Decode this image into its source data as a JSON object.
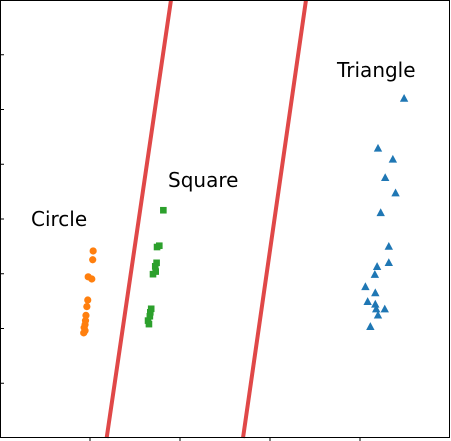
{
  "chart_data": {
    "type": "scatter",
    "title": "",
    "xlabel": "",
    "ylabel": "",
    "xlim": [
      0,
      1
    ],
    "ylim": [
      0,
      1
    ],
    "grid": false,
    "colors": {
      "circle": "#ff7f0e",
      "square": "#2ca02c",
      "triangle": "#1f77b4",
      "boundary": "#e04848"
    },
    "annotations": [
      {
        "text": "Circle",
        "series": "circle"
      },
      {
        "text": "Square",
        "series": "square"
      },
      {
        "text": "Triangle",
        "series": "triangle"
      }
    ],
    "series": [
      {
        "key": "circle",
        "marker": "circle",
        "points": [
          [
            0.207,
            0.427
          ],
          [
            0.206,
            0.407
          ],
          [
            0.196,
            0.368
          ],
          [
            0.204,
            0.363
          ],
          [
            0.195,
            0.315
          ],
          [
            0.193,
            0.3
          ],
          [
            0.191,
            0.28
          ],
          [
            0.19,
            0.268
          ],
          [
            0.189,
            0.259
          ],
          [
            0.187,
            0.252
          ],
          [
            0.189,
            0.245
          ],
          [
            0.186,
            0.24
          ]
        ]
      },
      {
        "key": "square",
        "marker": "square",
        "points": [
          [
            0.363,
            0.52
          ],
          [
            0.354,
            0.439
          ],
          [
            0.349,
            0.436
          ],
          [
            0.348,
            0.4
          ],
          [
            0.345,
            0.392
          ],
          [
            0.346,
            0.38
          ],
          [
            0.34,
            0.374
          ],
          [
            0.336,
            0.295
          ],
          [
            0.334,
            0.287
          ],
          [
            0.333,
            0.278
          ],
          [
            0.329,
            0.268
          ],
          [
            0.331,
            0.26
          ]
        ]
      },
      {
        "key": "triangle",
        "marker": "triangle",
        "points": [
          [
            0.898,
            0.775
          ],
          [
            0.84,
            0.661
          ],
          [
            0.873,
            0.636
          ],
          [
            0.856,
            0.594
          ],
          [
            0.879,
            0.559
          ],
          [
            0.846,
            0.514
          ],
          [
            0.864,
            0.437
          ],
          [
            0.864,
            0.4
          ],
          [
            0.838,
            0.391
          ],
          [
            0.833,
            0.373
          ],
          [
            0.812,
            0.345
          ],
          [
            0.834,
            0.331
          ],
          [
            0.817,
            0.311
          ],
          [
            0.834,
            0.305
          ],
          [
            0.855,
            0.294
          ],
          [
            0.836,
            0.294
          ],
          [
            0.84,
            0.28
          ],
          [
            0.823,
            0.254
          ]
        ]
      }
    ],
    "boundaries": [
      {
        "x1": 0.237,
        "y1": 0.0,
        "x2": 0.38,
        "y2": 1.0
      },
      {
        "x1": 0.54,
        "y1": 0.0,
        "x2": 0.68,
        "y2": 1.0
      }
    ],
    "x_ticks": [
      0.2,
      0.4,
      0.6,
      0.8
    ],
    "y_ticks": [
      0.125,
      0.25,
      0.375,
      0.5,
      0.625,
      0.75,
      0.875
    ]
  }
}
